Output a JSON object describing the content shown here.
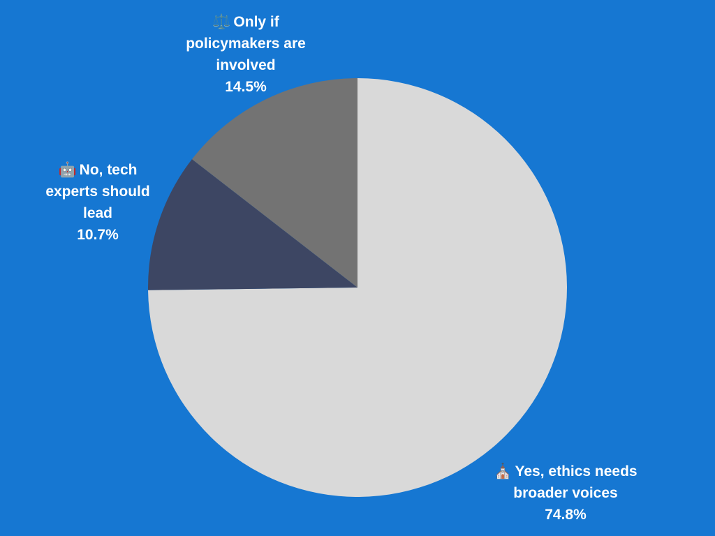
{
  "chart_data": {
    "type": "pie",
    "slices": [
      {
        "key": "yes",
        "label_lines": [
          "Yes, ethics needs",
          "broader voices"
        ],
        "value": 74.8,
        "value_text": "74.8%",
        "icon": "church-icon",
        "icon_glyph": "⛪",
        "color": "#d9d9d9"
      },
      {
        "key": "no",
        "label_lines": [
          "No, tech",
          "experts should",
          "lead"
        ],
        "value": 10.7,
        "value_text": "10.7%",
        "icon": "robot-icon",
        "icon_glyph": "🤖",
        "color": "#3d4663"
      },
      {
        "key": "only-if",
        "label_lines": [
          "Only if",
          "policymakers are",
          "involved"
        ],
        "value": 14.5,
        "value_text": "14.5%",
        "icon": "balance-scale-icon",
        "icon_glyph": "⚖️",
        "color": "#737373"
      }
    ],
    "start_angle_deg": 0,
    "direction": "clockwise",
    "background": "#1677d2"
  }
}
